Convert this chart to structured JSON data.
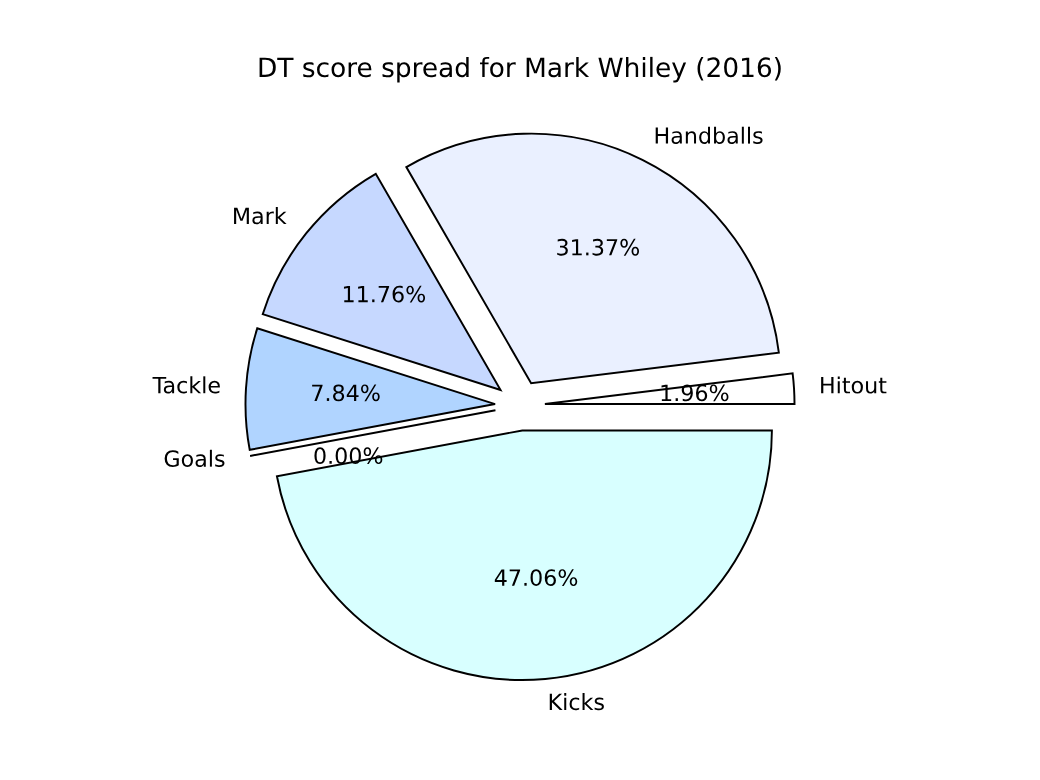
{
  "chart_data": {
    "type": "pie",
    "title": "DT score spread for Mark Whiley (2016)",
    "categories": [
      "Hitout",
      "Handballs",
      "Mark",
      "Tackle",
      "Goals",
      "Kicks"
    ],
    "values": [
      1.96,
      31.37,
      11.76,
      7.84,
      0.0,
      47.06
    ],
    "value_labels": [
      "1.96%",
      "31.37%",
      "11.76%",
      "7.84%",
      "0.00%",
      "47.06%"
    ],
    "colors": [
      "#ffffff",
      "#eaf0ff",
      "#c6d8ff",
      "#b0d4ff",
      "#a0c0ff",
      "#d8ffff"
    ],
    "legend": false
  }
}
